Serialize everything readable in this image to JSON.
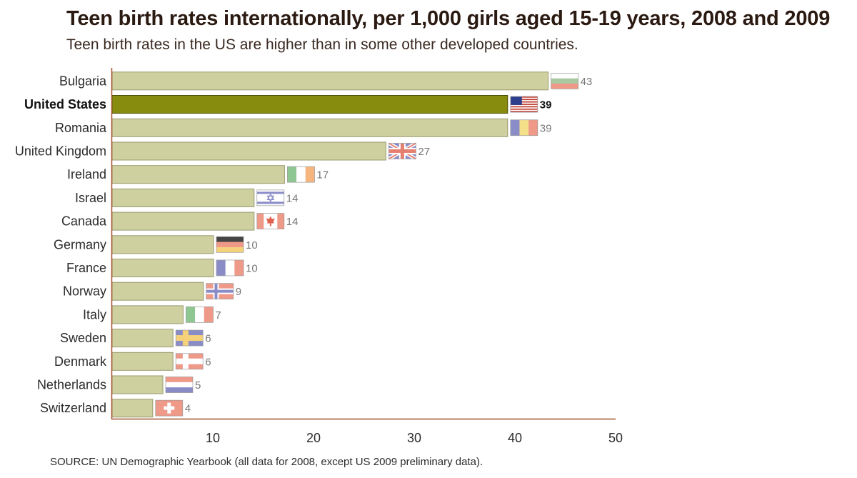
{
  "chart_data": {
    "type": "bar",
    "orientation": "horizontal",
    "title": "Teen birth rates internationally, per 1,000 girls aged 15-19 years, 2008 and 2009",
    "subtitle": "Teen birth rates in the US are higher than in some other developed countries.",
    "source": "SOURCE: UN Demographic Yearbook (all data for 2008, except US 2009 preliminary data).",
    "categories": [
      "Bulgaria",
      "United States",
      "Romania",
      "United Kingdom",
      "Ireland",
      "Israel",
      "Canada",
      "Germany",
      "France",
      "Norway",
      "Italy",
      "Sweden",
      "Denmark",
      "Netherlands",
      "Switzerland"
    ],
    "values": [
      43,
      39,
      39,
      27,
      17,
      14,
      14,
      10,
      10,
      9,
      7,
      6,
      6,
      5,
      4
    ],
    "value_labels": [
      "43",
      "39",
      "39",
      "27",
      "17",
      "14",
      "14",
      "10",
      "10",
      "9",
      "7",
      "6",
      "6",
      "5",
      "4"
    ],
    "highlight": "United States",
    "xlim": [
      0,
      50
    ],
    "xticks": [
      10,
      20,
      30,
      40,
      50
    ],
    "xtick_labels": [
      "10",
      "20",
      "30",
      "40",
      "50"
    ],
    "xlabel": "",
    "ylabel": "",
    "grid": false,
    "colors": {
      "bar": "#cfd0a0",
      "bar_edge": "#9a9a70",
      "highlight_bar": "#888c0e",
      "highlight_edge": "#4a4c08",
      "axis": "#a0522d"
    },
    "flags": [
      "bulgaria",
      "united-states",
      "romania",
      "united-kingdom",
      "ireland",
      "israel",
      "canada",
      "germany",
      "france",
      "norway",
      "italy",
      "sweden",
      "denmark",
      "netherlands",
      "switzerland"
    ]
  }
}
